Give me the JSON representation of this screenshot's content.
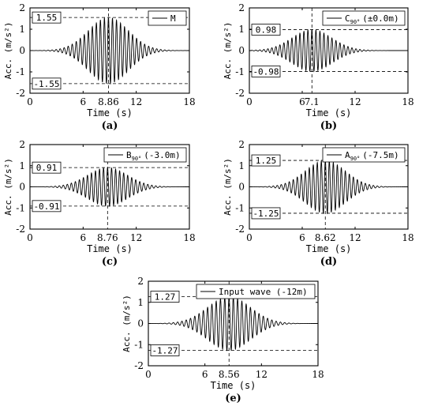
{
  "chart_data": [
    {
      "id": "a",
      "type": "line",
      "panel_label": "(a)",
      "xlabel": "Time (s)",
      "ylabel": "Acc. (m/s²)",
      "xlim": [
        0,
        18
      ],
      "ylim": [
        -2,
        2
      ],
      "xticks": [
        0,
        6,
        12,
        18
      ],
      "yticks": [
        -2,
        -1,
        0,
        1,
        2
      ],
      "peak_time": 8.86,
      "peak_time_label": "8.86",
      "pos_peak": 1.55,
      "neg_peak": -1.55,
      "pos_label": "1.55",
      "neg_label": "-1.55",
      "legend": {
        "name": "M",
        "sub": "",
        "suffix": ""
      },
      "signal": {
        "duration": 18,
        "center": 8.86,
        "amplitude": 1.55,
        "frequency": 2.2,
        "envelope_width": 3.2
      }
    },
    {
      "id": "b",
      "type": "line",
      "panel_label": "(b)",
      "xlabel": "Time (s)",
      "ylabel": "Acc. (m/s²)",
      "xlim": [
        0,
        18
      ],
      "ylim": [
        -2,
        2
      ],
      "xticks": [
        0,
        6,
        12,
        18
      ],
      "yticks": [
        -2,
        -1,
        0,
        1,
        2
      ],
      "peak_time": 7.1,
      "peak_time_label": "7.1",
      "pos_peak": 0.98,
      "neg_peak": -0.98,
      "pos_label": "0.98",
      "neg_label": "-0.98",
      "legend": {
        "name": "C",
        "sub": "90°",
        "suffix": "(±0.0m)"
      },
      "signal": {
        "duration": 18,
        "center": 7.1,
        "amplitude": 0.98,
        "frequency": 2.2,
        "envelope_width": 3.2
      }
    },
    {
      "id": "c",
      "type": "line",
      "panel_label": "(c)",
      "xlabel": "Time (s)",
      "ylabel": "Acc. (m/s²)",
      "xlim": [
        0,
        18
      ],
      "ylim": [
        -2,
        2
      ],
      "xticks": [
        0,
        6,
        12,
        18
      ],
      "yticks": [
        -2,
        -1,
        0,
        1,
        2
      ],
      "peak_time": 8.76,
      "peak_time_label": "8.76",
      "pos_peak": 0.91,
      "neg_peak": -0.91,
      "pos_label": "0.91",
      "neg_label": "-0.91",
      "legend": {
        "name": "B",
        "sub": "90°",
        "suffix": "(-3.0m)"
      },
      "signal": {
        "duration": 18,
        "center": 8.76,
        "amplitude": 0.91,
        "frequency": 2.2,
        "envelope_width": 3.2
      }
    },
    {
      "id": "d",
      "type": "line",
      "panel_label": "(d)",
      "xlabel": "Time (s)",
      "ylabel": "Acc. (m/s²)",
      "xlim": [
        0,
        18
      ],
      "ylim": [
        -2,
        2
      ],
      "xticks": [
        0,
        6,
        12,
        18
      ],
      "yticks": [
        -2,
        -1,
        0,
        1,
        2
      ],
      "peak_time": 8.62,
      "peak_time_label": "8.62",
      "pos_peak": 1.25,
      "neg_peak": -1.25,
      "pos_label": "1.25",
      "neg_label": "-1.25",
      "legend": {
        "name": "A",
        "sub": "90°",
        "suffix": "(-7.5m)"
      },
      "signal": {
        "duration": 18,
        "center": 8.62,
        "amplitude": 1.25,
        "frequency": 2.2,
        "envelope_width": 3.2
      }
    },
    {
      "id": "e",
      "type": "line",
      "panel_label": "(e)",
      "xlabel": "Time (s)",
      "ylabel": "Acc. (m/s²)",
      "xlim": [
        0,
        18
      ],
      "ylim": [
        -2,
        2
      ],
      "xticks": [
        0,
        6,
        12,
        18
      ],
      "yticks": [
        -2,
        -1,
        0,
        1,
        2
      ],
      "peak_time": 8.56,
      "peak_time_label": "8.56",
      "pos_peak": 1.27,
      "neg_peak": -1.27,
      "pos_label": "1.27",
      "neg_label": "-1.27",
      "legend": {
        "name": "Input wave (-12m)",
        "sub": "",
        "suffix": ""
      },
      "signal": {
        "duration": 18,
        "center": 8.56,
        "amplitude": 1.27,
        "frequency": 2.2,
        "envelope_width": 3.2
      }
    }
  ]
}
